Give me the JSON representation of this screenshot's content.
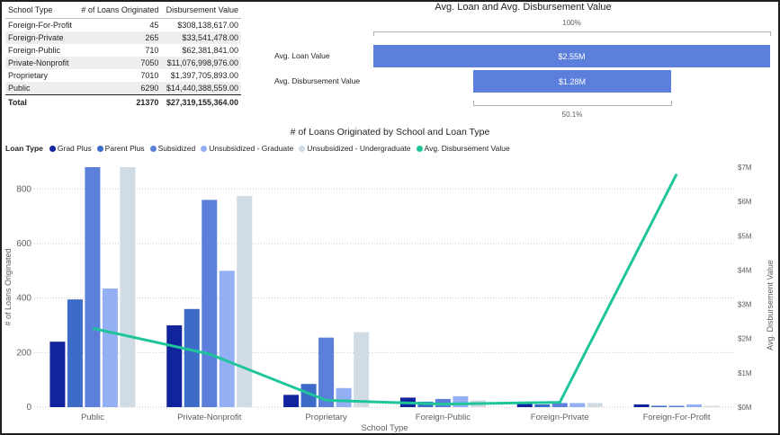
{
  "table": {
    "headers": [
      "School Type",
      "# of Loans Originated",
      "Disbursement Value"
    ],
    "rows": [
      [
        "Foreign-For-Profit",
        "45",
        "$308,138,617.00"
      ],
      [
        "Foreign-Private",
        "265",
        "$33,541,478.00"
      ],
      [
        "Foreign-Public",
        "710",
        "$62,381,841.00"
      ],
      [
        "Private-Nonprofit",
        "7050",
        "$11,076,998,976.00"
      ],
      [
        "Proprietary",
        "7010",
        "$1,397,705,893.00"
      ],
      [
        "Public",
        "6290",
        "$14,440,388,559.00"
      ]
    ],
    "total": [
      "Total",
      "21370",
      "$27,319,155,364.00"
    ]
  },
  "funnel": {
    "title": "Avg. Loan and Avg. Disbursement Value",
    "top_pct": "100%",
    "bottom_pct": "50.1%",
    "items": [
      {
        "label": "Avg. Loan Value",
        "value_text": "$2.55M",
        "share": 1.0
      },
      {
        "label": "Avg. Disbursement Value",
        "value_text": "$1.28M",
        "share": 0.501
      }
    ],
    "bar_color": "#5b7fdb"
  },
  "chart_data": {
    "type": "bar",
    "title": "# of Loans Originated by School and Loan Type",
    "legend_title": "Loan Type",
    "xlabel": "School Type",
    "ylabel": "# of Loans Originated",
    "y2label": "Avg. Disbursement Value",
    "categories": [
      "Public",
      "Private-Nonprofit",
      "Proprietary",
      "Foreign-Public",
      "Foreign-Private",
      "Foreign-For-Profit"
    ],
    "ylim": [
      0,
      880
    ],
    "yticks": [
      0,
      200,
      400,
      600,
      800
    ],
    "y2lim": [
      0,
      7000000
    ],
    "y2ticks": [
      0,
      1000000,
      2000000,
      3000000,
      4000000,
      5000000,
      6000000,
      7000000
    ],
    "y2tick_labels": [
      "$0M",
      "$1M",
      "$2M",
      "$3M",
      "$4M",
      "$5M",
      "$6M",
      "$7M"
    ],
    "grid": true,
    "legend_position": "top-left",
    "series": [
      {
        "name": "Grad Plus",
        "kind": "bar",
        "color": "#12239e",
        "values": [
          240,
          300,
          45,
          35,
          15,
          10
        ]
      },
      {
        "name": "Parent Plus",
        "kind": "bar",
        "color": "#3c6cc8",
        "values": [
          395,
          360,
          85,
          20,
          10,
          5
        ]
      },
      {
        "name": "Subsidized",
        "kind": "bar",
        "color": "#5b7fdb",
        "values": [
          880,
          760,
          255,
          30,
          15,
          5
        ]
      },
      {
        "name": "Unsubsidized - Graduate",
        "kind": "bar",
        "color": "#94b0f4",
        "values": [
          435,
          500,
          70,
          40,
          15,
          10
        ]
      },
      {
        "name": "Unsubsidized - Undergraduate",
        "kind": "bar",
        "color": "#d0dbe3",
        "values": [
          880,
          775,
          275,
          25,
          15,
          5
        ]
      },
      {
        "name": "Avg. Disbursement Value",
        "kind": "line",
        "axis": "y2",
        "color": "#1fc59a",
        "values": [
          2300000,
          1550000,
          200000,
          90000,
          140000,
          6800000
        ]
      }
    ]
  }
}
